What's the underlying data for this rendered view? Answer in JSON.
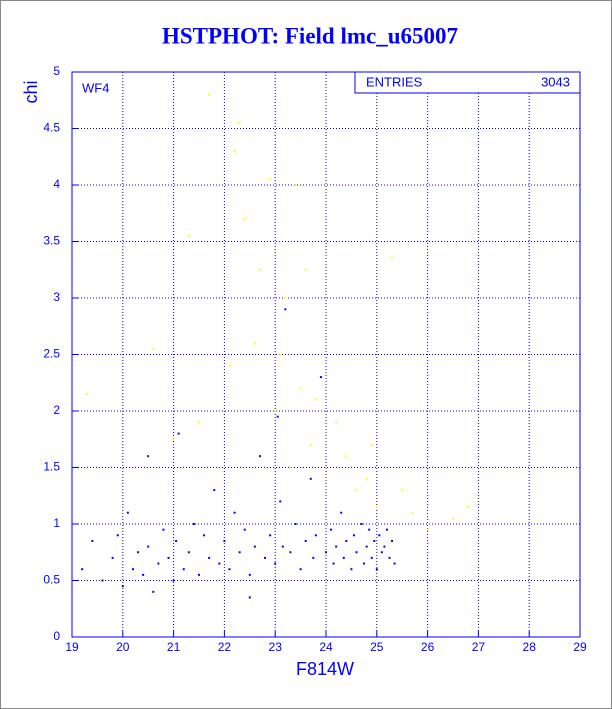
{
  "chart_data": {
    "type": "scatter",
    "title": "HSTPHOT: Field lmc_u65007",
    "x_label": "F814W",
    "y_label": "chi",
    "annotation": "WF4",
    "stats": {
      "label": "ENTRIES",
      "value": 3043
    },
    "xlim": [
      19,
      29
    ],
    "xticks": [
      19,
      20,
      21,
      22,
      23,
      24,
      25,
      26,
      27,
      28,
      29
    ],
    "ylim": [
      0,
      5
    ],
    "yticks": [
      0,
      0.5,
      1,
      1.5,
      2,
      2.5,
      3,
      3.5,
      4,
      4.5,
      5
    ],
    "grid": true,
    "series": [
      {
        "color": "#0000ff",
        "x": [
          19.2,
          19.4,
          19.6,
          19.8,
          19.9,
          20.0,
          20.1,
          20.2,
          20.3,
          20.4,
          20.5,
          20.6,
          20.7,
          20.8,
          20.9,
          21.0,
          21.05,
          21.1,
          21.2,
          21.3,
          21.4,
          21.5,
          21.6,
          21.7,
          21.8,
          21.9,
          22.0,
          22.1,
          22.2,
          22.3,
          22.4,
          22.5,
          22.6,
          22.7,
          22.8,
          22.9,
          23.0,
          23.1,
          23.15,
          23.2,
          23.3,
          23.4,
          23.5,
          23.6,
          23.7,
          23.75,
          23.8,
          23.9,
          24.0,
          24.1,
          24.15,
          24.2,
          24.3,
          24.35,
          24.4,
          24.5,
          24.55,
          24.6,
          24.7,
          24.75,
          24.8,
          24.85,
          24.9,
          24.95,
          25.0,
          25.05,
          25.1,
          25.15,
          25.2,
          25.25,
          25.3,
          25.35,
          22.5,
          20.5,
          23.05
        ],
        "y": [
          0.6,
          0.85,
          0.5,
          0.7,
          0.9,
          0.45,
          1.1,
          0.6,
          0.75,
          0.55,
          0.8,
          0.4,
          0.65,
          0.95,
          0.7,
          0.5,
          0.85,
          1.8,
          0.6,
          0.75,
          1.0,
          0.55,
          0.9,
          0.7,
          1.3,
          0.65,
          0.85,
          0.6,
          1.1,
          0.75,
          0.95,
          0.55,
          0.8,
          1.6,
          0.7,
          0.9,
          0.65,
          1.2,
          0.8,
          2.9,
          0.75,
          1.0,
          0.6,
          0.85,
          1.4,
          0.7,
          0.9,
          2.3,
          0.75,
          0.95,
          0.65,
          0.8,
          1.1,
          0.7,
          0.85,
          0.6,
          0.9,
          0.75,
          1.0,
          0.65,
          0.8,
          0.95,
          0.7,
          0.85,
          0.6,
          0.9,
          0.75,
          0.8,
          0.95,
          0.7,
          0.85,
          0.65,
          0.35,
          1.6,
          1.95
        ]
      },
      {
        "color": "#ffff00",
        "x": [
          19.3,
          20.6,
          21.0,
          21.3,
          21.7,
          22.2,
          22.3,
          22.4,
          22.6,
          22.7,
          22.9,
          23.0,
          23.1,
          23.2,
          23.4,
          23.5,
          23.6,
          23.7,
          23.8,
          24.0,
          24.2,
          24.4,
          24.6,
          24.8,
          25.0,
          25.3,
          25.5,
          25.7,
          26.0,
          26.5,
          26.8,
          22.1,
          21.5,
          23.3,
          24.9
        ],
        "y": [
          2.15,
          2.55,
          1.75,
          3.55,
          4.8,
          4.3,
          4.55,
          3.7,
          2.6,
          3.25,
          4.05,
          2.0,
          2.5,
          3.0,
          4.0,
          2.2,
          3.25,
          1.7,
          2.1,
          1.5,
          1.9,
          1.6,
          1.3,
          1.4,
          1.15,
          3.35,
          1.3,
          1.1,
          0.95,
          1.05,
          1.15,
          2.4,
          1.9,
          1.5,
          1.7
        ]
      }
    ]
  }
}
